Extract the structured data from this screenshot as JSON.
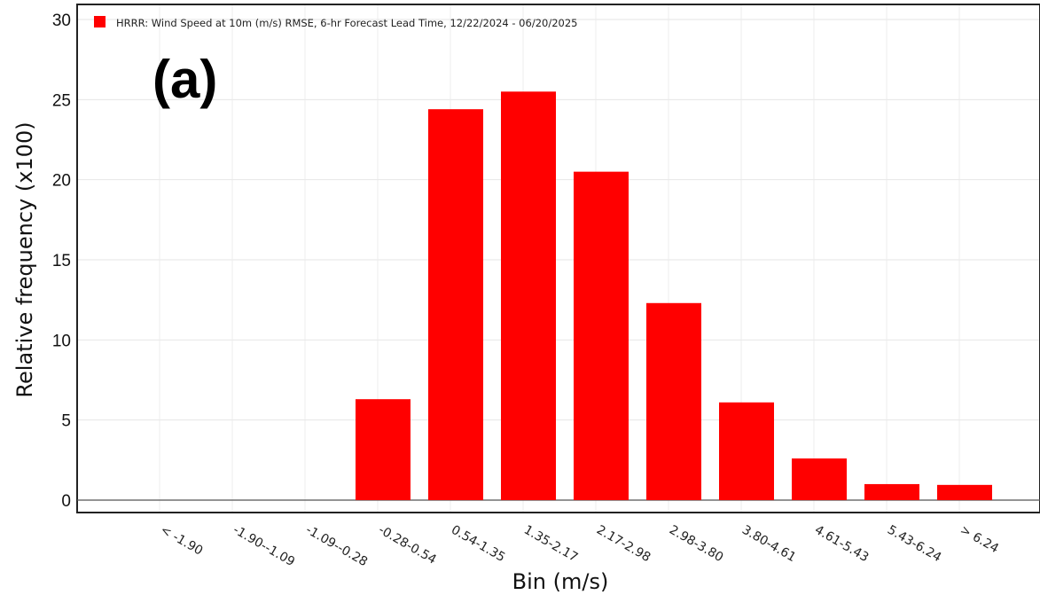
{
  "panel_label": "(a)",
  "chart_data": {
    "type": "bar",
    "categories": [
      "< -1.90",
      "-1.90--1.09",
      "-1.09--0.28",
      "-0.28-0.54",
      "0.54-1.35",
      "1.35-2.17",
      "2.17-2.98",
      "2.98-3.80",
      "3.80-4.61",
      "4.61-5.43",
      "5.43-6.24",
      "> 6.24"
    ],
    "series": [
      {
        "name": "HRRR: Wind Speed at 10m (m/s) RMSE, 6-hr Forecast Lead Time, 12/22/2024  - 06/20/2025",
        "color": "#ff0000",
        "values": [
          0,
          0,
          0,
          6.3,
          24.4,
          25.5,
          20.5,
          12.3,
          6.1,
          2.6,
          1.0,
          0.95
        ]
      }
    ],
    "xlabel": "Bin (m/s)",
    "ylabel": "Relative frequency (x100)",
    "ylim": [
      0,
      30
    ],
    "yticks": [
      0,
      5,
      10,
      15,
      20,
      25,
      30
    ],
    "grid": true,
    "legend_position": "top-left"
  }
}
